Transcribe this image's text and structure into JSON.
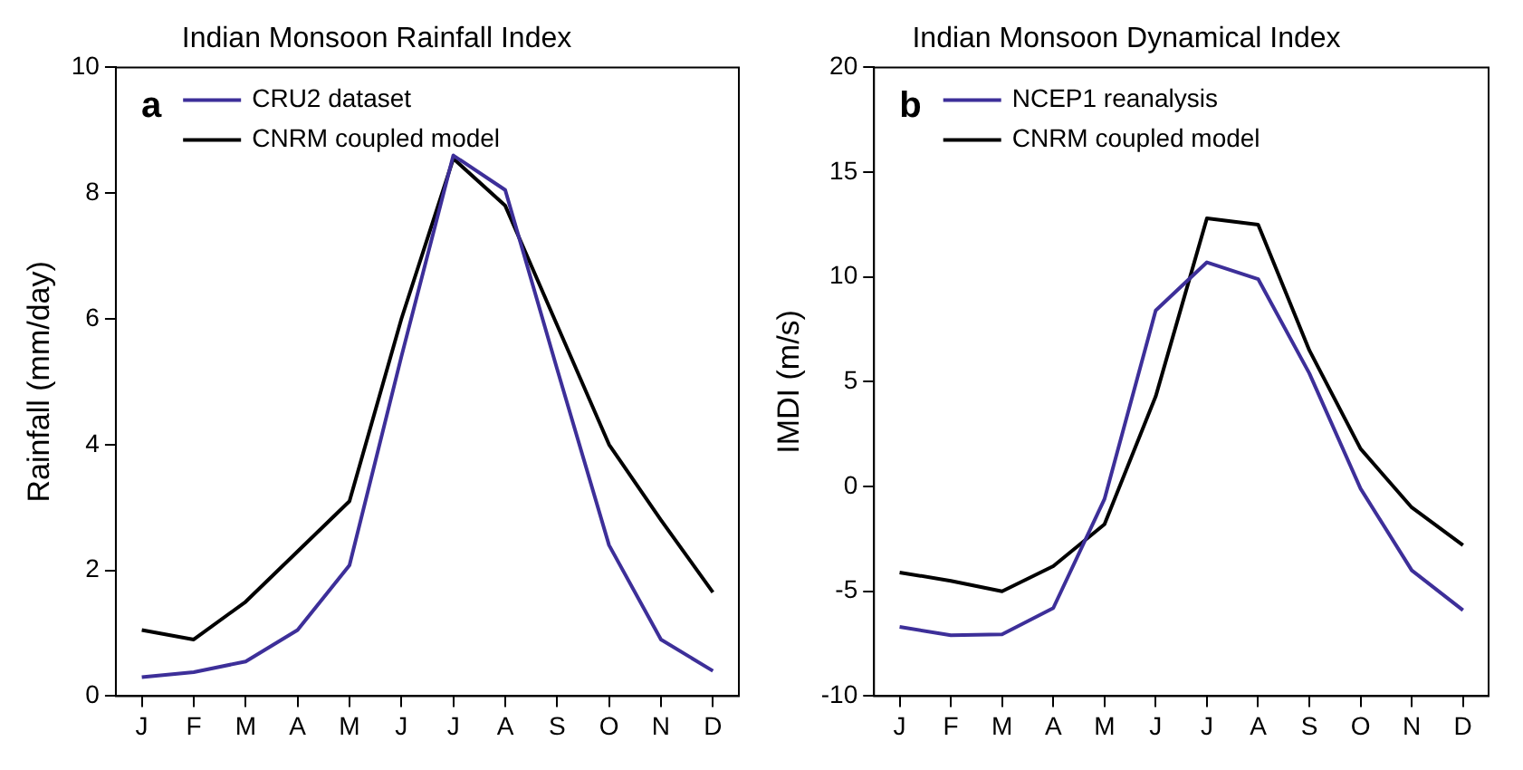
{
  "chart_data": [
    {
      "type": "line",
      "title": "Indian Monsoon Rainfall Index",
      "ylabel": "Rainfall (mm/day)",
      "annotations": [
        "a"
      ],
      "categories": [
        "J",
        "F",
        "M",
        "A",
        "M",
        "J",
        "J",
        "A",
        "S",
        "O",
        "N",
        "D"
      ],
      "series": [
        {
          "name": "CRU2 dataset",
          "color": "#3d2f99",
          "values": [
            0.3,
            0.38,
            0.55,
            1.05,
            2.08,
            5.4,
            8.6,
            8.05,
            5.2,
            2.4,
            0.9,
            0.4
          ]
        },
        {
          "name": "CNRM coupled model",
          "color": "#000000",
          "values": [
            1.05,
            0.9,
            1.5,
            2.3,
            3.1,
            6.0,
            8.55,
            7.8,
            5.9,
            4.0,
            2.8,
            1.65
          ]
        }
      ],
      "ylim": [
        0,
        10
      ],
      "yticks": [
        0,
        2,
        4,
        6,
        8,
        10
      ],
      "grid": false,
      "legend": "top left",
      "marker": "none",
      "line_style": "solid"
    },
    {
      "type": "line",
      "title": "Indian Monsoon Dynamical Index",
      "ylabel": "IMDI (m/s)",
      "annotations": [
        "b"
      ],
      "categories": [
        "J",
        "F",
        "M",
        "A",
        "M",
        "J",
        "J",
        "A",
        "S",
        "O",
        "N",
        "D"
      ],
      "series": [
        {
          "name": "NCEP1 reanalysis",
          "color": "#3d2f99",
          "values": [
            -6.7,
            -7.1,
            -7.05,
            -5.8,
            -0.6,
            8.4,
            10.7,
            9.9,
            5.4,
            -0.1,
            -4.0,
            -5.9
          ]
        },
        {
          "name": "CNRM coupled model",
          "color": "#000000",
          "values": [
            -4.1,
            -4.5,
            -5.0,
            -3.8,
            -1.8,
            4.3,
            12.8,
            12.5,
            6.5,
            1.8,
            -1.0,
            -2.8
          ]
        }
      ],
      "ylim": [
        -10,
        20
      ],
      "yticks": [
        -10,
        -5,
        0,
        5,
        10,
        15,
        20
      ],
      "grid": false,
      "legend": "top left",
      "marker": "none",
      "line_style": "solid"
    }
  ]
}
